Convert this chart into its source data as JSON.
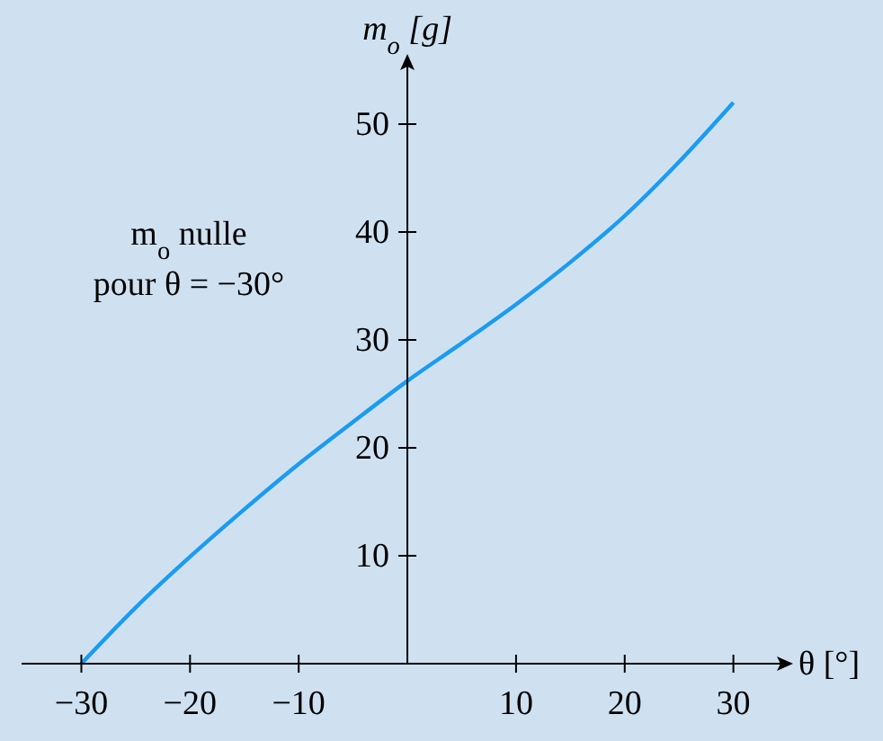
{
  "chart_data": {
    "type": "line",
    "x": [
      -30,
      -25,
      -20,
      -15,
      -10,
      -5,
      0,
      5,
      10,
      15,
      20,
      25,
      30
    ],
    "series": [
      {
        "color": "#1a9cf0",
        "values": [
          0,
          5.2,
          9.9,
          14.3,
          18.5,
          22.4,
          26.2,
          29.7,
          33.3,
          37.2,
          41.5,
          46.5,
          52
        ]
      }
    ],
    "xlim": [
      -35.5,
      34.5
    ],
    "ylim": [
      0,
      55.5
    ],
    "xticks": [
      {
        "value": -30,
        "label": "−30"
      },
      {
        "value": -20,
        "label": "−20"
      },
      {
        "value": -10,
        "label": "−10"
      },
      10,
      20,
      30
    ],
    "yticks": [
      10,
      20,
      30,
      40,
      50
    ],
    "xlabel": "θ [°]",
    "ylabel": "m$_{o}$ [g]",
    "annotations": [
      "m$_{o}$ nulle",
      "pour θ = −30°"
    ],
    "grid": false,
    "marker": "none",
    "line_style": "solid"
  }
}
